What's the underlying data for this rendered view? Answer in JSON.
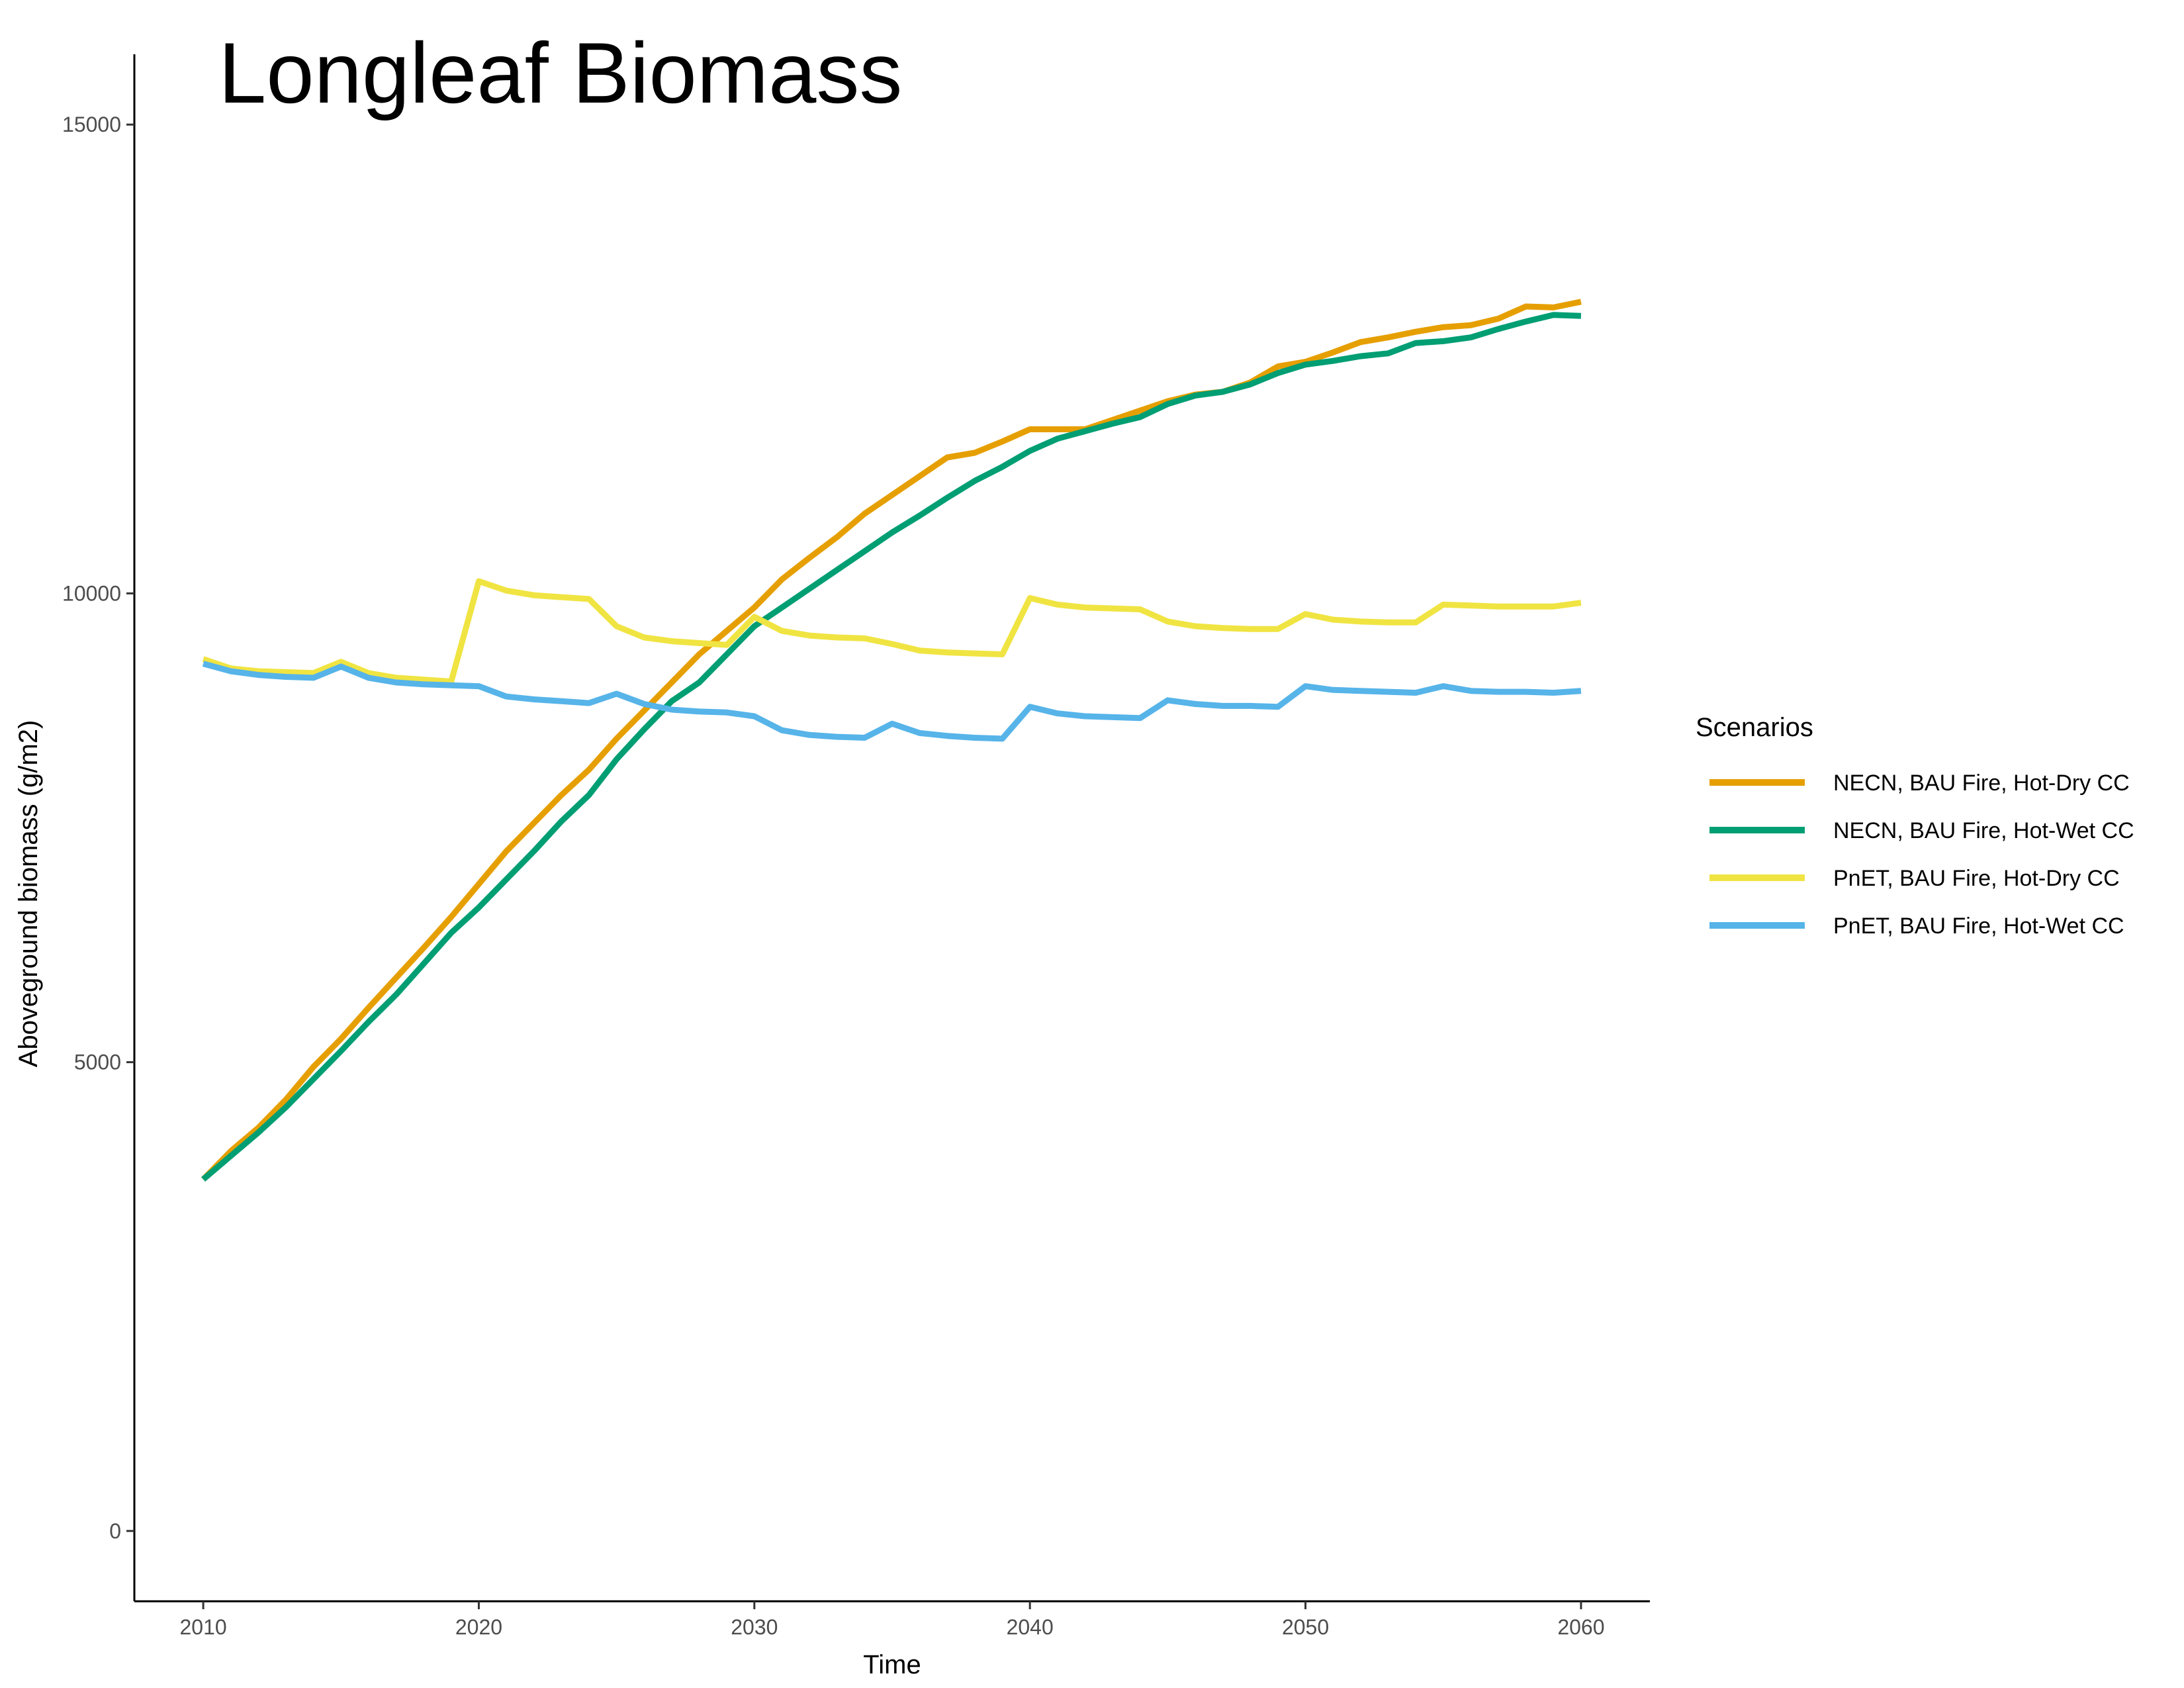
{
  "chart_data": {
    "type": "line",
    "title": "Longleaf Biomass",
    "xlabel": "Time",
    "ylabel": "Aboveground biomass (g/m2)",
    "xlim": [
      2007.5,
      2062.5
    ],
    "ylim": [
      -750,
      15750
    ],
    "x_ticks": [
      2010,
      2020,
      2030,
      2040,
      2050,
      2060
    ],
    "x_tick_labels": [
      "2010",
      "2020",
      "2030",
      "2040",
      "2050",
      "2060"
    ],
    "y_ticks": [
      0,
      5000,
      10000,
      15000
    ],
    "y_tick_labels": [
      "0",
      "5000",
      "10000",
      "15000"
    ],
    "grid": false,
    "legend": {
      "title": "Scenarios",
      "position": "right"
    },
    "x": [
      2010,
      2011,
      2012,
      2013,
      2014,
      2015,
      2016,
      2017,
      2018,
      2019,
      2020,
      2021,
      2022,
      2023,
      2024,
      2025,
      2026,
      2027,
      2028,
      2029,
      2030,
      2031,
      2032,
      2033,
      2034,
      2035,
      2036,
      2037,
      2038,
      2039,
      2040,
      2041,
      2042,
      2043,
      2044,
      2045,
      2046,
      2047,
      2048,
      2049,
      2050,
      2051,
      2052,
      2053,
      2054,
      2055,
      2056,
      2057,
      2058,
      2059,
      2060
    ],
    "series": [
      {
        "name": "NECN, BAU Fire, Hot-Dry CC",
        "color": "#E69F00",
        "values": [
          3750,
          4050,
          4300,
          4600,
          4950,
          5250,
          5580,
          5900,
          6220,
          6550,
          6900,
          7250,
          7550,
          7850,
          8120,
          8450,
          8750,
          9050,
          9350,
          9600,
          9850,
          10150,
          10380,
          10600,
          10850,
          11050,
          11250,
          11450,
          11500,
          11620,
          11750,
          11750,
          11750,
          11850,
          11950,
          12050,
          12120,
          12150,
          12250,
          12420,
          12470,
          12570,
          12680,
          12730,
          12790,
          12840,
          12860,
          12930,
          13060,
          13050,
          13110
        ]
      },
      {
        "name": "NECN, BAU Fire, Hot-Wet CC",
        "color": "#009E73",
        "values": [
          3750,
          4000,
          4250,
          4520,
          4820,
          5120,
          5430,
          5720,
          6050,
          6380,
          6650,
          6950,
          7250,
          7570,
          7850,
          8230,
          8550,
          8850,
          9050,
          9350,
          9650,
          9850,
          10050,
          10250,
          10450,
          10650,
          10830,
          11020,
          11200,
          11350,
          11520,
          11650,
          11730,
          11810,
          11880,
          12020,
          12110,
          12150,
          12230,
          12350,
          12440,
          12480,
          12530,
          12560,
          12670,
          12690,
          12730,
          12820,
          12900,
          12970,
          12960
        ]
      },
      {
        "name": "PnET, BAU Fire, Hot-Dry CC",
        "color": "#F0E442",
        "values": [
          9300,
          9200,
          9170,
          9160,
          9150,
          9270,
          9150,
          9100,
          9080,
          9060,
          10130,
          10030,
          9980,
          9960,
          9940,
          9650,
          9530,
          9490,
          9470,
          9450,
          9750,
          9600,
          9550,
          9530,
          9520,
          9460,
          9390,
          9370,
          9360,
          9350,
          9950,
          9880,
          9850,
          9840,
          9830,
          9700,
          9650,
          9630,
          9620,
          9620,
          9780,
          9720,
          9700,
          9690,
          9690,
          9880,
          9870,
          9860,
          9860,
          9860,
          9900
        ]
      },
      {
        "name": "PnET, BAU Fire, Hot-Wet CC",
        "color": "#56B4E9",
        "values": [
          9250,
          9170,
          9130,
          9110,
          9100,
          9220,
          9100,
          9050,
          9030,
          9020,
          9010,
          8900,
          8870,
          8850,
          8830,
          8930,
          8820,
          8760,
          8740,
          8730,
          8690,
          8540,
          8490,
          8470,
          8460,
          8610,
          8510,
          8480,
          8460,
          8450,
          8790,
          8720,
          8690,
          8680,
          8670,
          8860,
          8820,
          8800,
          8800,
          8790,
          9010,
          8970,
          8960,
          8950,
          8940,
          9010,
          8960,
          8950,
          8950,
          8940,
          8960
        ]
      }
    ]
  }
}
